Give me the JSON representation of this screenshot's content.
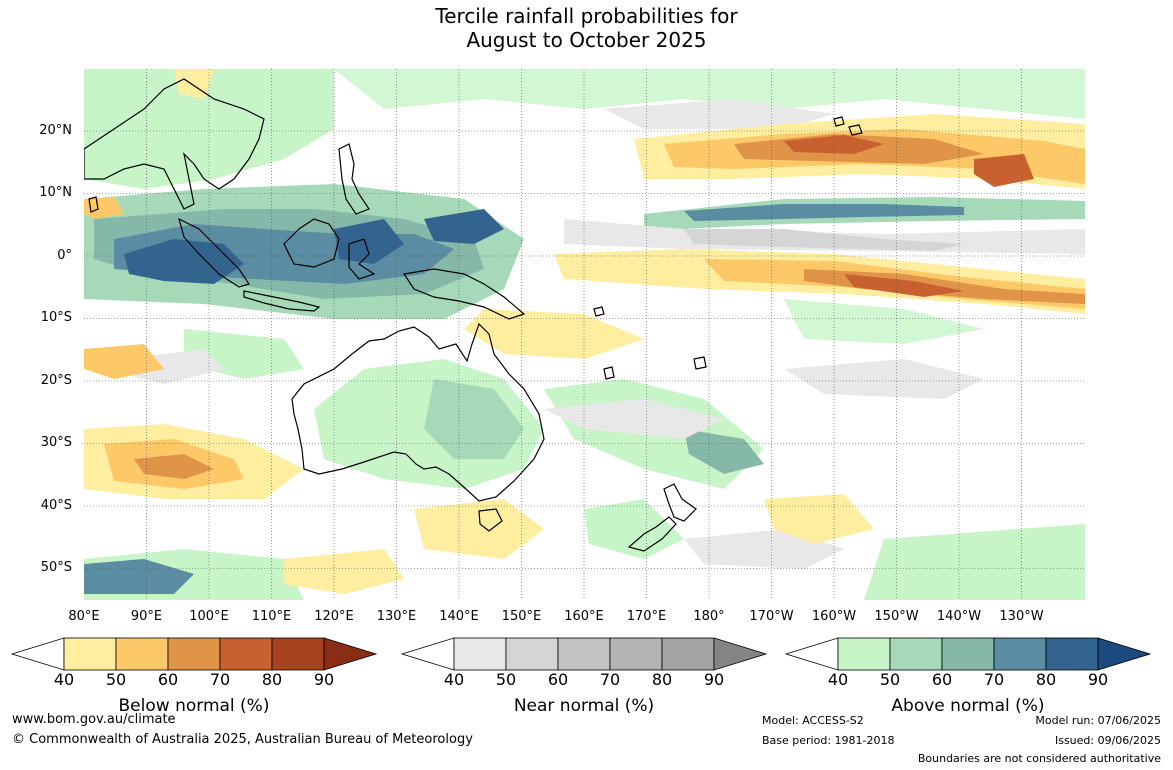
{
  "title": {
    "line1": "Tercile rainfall probabilities for",
    "line2": "August to October 2025"
  },
  "map": {
    "lat_labels": [
      "20°N",
      "10°N",
      "0°",
      "10°S",
      "20°S",
      "30°S",
      "40°S",
      "50°S"
    ],
    "lon_labels": [
      "80°E",
      "90°E",
      "100°E",
      "110°E",
      "120°E",
      "130°E",
      "140°E",
      "150°E",
      "160°E",
      "170°E",
      "180°",
      "170°W",
      "160°W",
      "150°W",
      "140°W",
      "130°W"
    ]
  },
  "legends": [
    {
      "title": "Below normal (%)",
      "ticks": [
        "40",
        "50",
        "60",
        "70",
        "80",
        "90"
      ],
      "colors": [
        "#ffffff",
        "#ffeda0",
        "#fdc968",
        "#e09448",
        "#c8612f",
        "#a8431f",
        "#8b2c14"
      ]
    },
    {
      "title": "Near normal (%)",
      "ticks": [
        "40",
        "50",
        "60",
        "70",
        "80",
        "90"
      ],
      "colors": [
        "#ffffff",
        "#e8e8e8",
        "#d5d5d5",
        "#c2c2c2",
        "#b3b3b3",
        "#a3a3a3",
        "#858585"
      ]
    },
    {
      "title": "Above normal (%)",
      "ticks": [
        "40",
        "50",
        "60",
        "70",
        "80",
        "90"
      ],
      "colors": [
        "#ffffff",
        "#c7f5c8",
        "#a5d9b8",
        "#86b8aa",
        "#5a8da2",
        "#32648f",
        "#1a4a7e"
      ]
    }
  ],
  "footer": {
    "website": "www.bom.gov.au/climate",
    "copyright": "© Commonwealth of Australia 2025, Australian Bureau of Meteorology",
    "model": "Model: ACCESS-S2",
    "base_period": "Base period: 1981-2018",
    "model_run": "Model run: 07/06/2025",
    "issued": "Issued: 09/06/2025",
    "disclaimer": "Boundaries are not considered authoritative"
  }
}
